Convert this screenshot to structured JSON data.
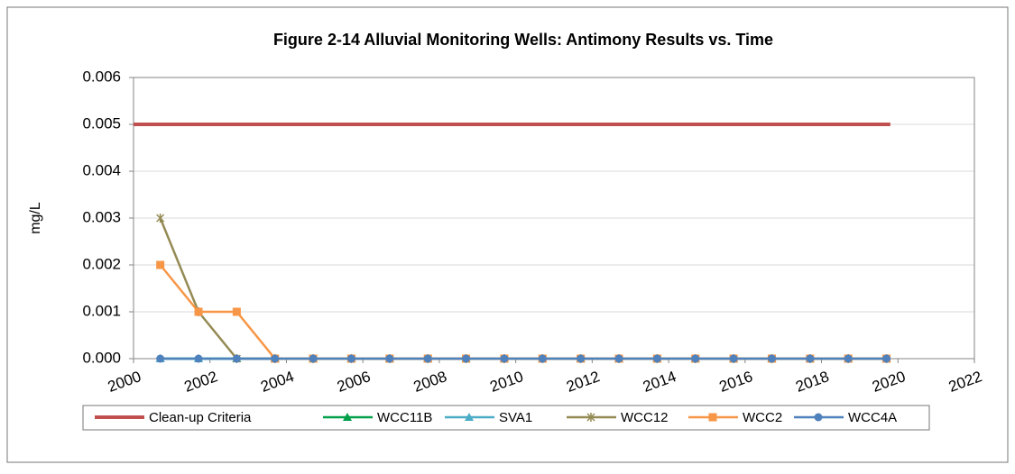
{
  "chart_data": {
    "type": "line",
    "title": "Figure 2-14 Alluvial Monitoring Wells: Antimony Results vs. Time",
    "y_label": "mg/L",
    "x": [
      2000.7,
      2001.7,
      2002.7,
      2003.7,
      2004.7,
      2005.7,
      2006.7,
      2007.7,
      2008.7,
      2009.7,
      2010.7,
      2011.7,
      2012.7,
      2013.7,
      2014.7,
      2015.7,
      2016.7,
      2017.7,
      2018.7,
      2019.7
    ],
    "xlim": [
      2000,
      2022
    ],
    "xticks": [
      2000,
      2002,
      2004,
      2006,
      2008,
      2010,
      2012,
      2014,
      2016,
      2018,
      2020,
      2022
    ],
    "ylim": [
      0,
      0.006
    ],
    "yticks": [
      {
        "value": 0,
        "label": "0.000"
      },
      {
        "value": 0.001,
        "label": "0.001"
      },
      {
        "value": 0.002,
        "label": "0.002"
      },
      {
        "value": 0.003,
        "label": "0.003"
      },
      {
        "value": 0.004,
        "label": "0.004"
      },
      {
        "value": 0.005,
        "label": "0.005"
      },
      {
        "value": 0.006,
        "label": "0.006"
      }
    ],
    "grid": true,
    "legend": "bottom",
    "series": [
      {
        "name": "Clean-up Criteria",
        "color": "#c0504d",
        "x": [
          2000,
          2019.8
        ],
        "values": [
          0.005,
          0.005
        ]
      },
      {
        "name": "WCC11B",
        "color": "#00a04a",
        "marker": "triangle",
        "values": [
          0,
          0,
          0,
          0,
          0,
          0,
          0,
          0,
          0,
          0,
          0,
          0,
          0,
          0,
          0,
          0,
          0,
          0,
          0,
          0
        ]
      },
      {
        "name": "SVA1",
        "color": "#4bacc6",
        "marker": "triangle",
        "values": [
          0,
          0,
          0,
          0,
          0,
          0,
          0,
          0,
          0,
          0,
          0,
          0,
          0,
          0,
          0,
          0,
          0,
          0,
          0,
          0
        ]
      },
      {
        "name": "WCC12",
        "color": "#948a54",
        "marker": "star",
        "values": [
          0.003,
          0.001,
          0,
          0,
          0,
          0,
          0,
          0,
          0,
          0,
          0,
          0,
          0,
          0,
          0,
          0,
          0,
          0,
          0,
          0
        ]
      },
      {
        "name": "WCC2",
        "color": "#f79646",
        "marker": "square",
        "values": [
          0.002,
          0.001,
          0.001,
          0,
          0,
          0,
          0,
          0,
          0,
          0,
          0,
          0,
          0,
          0,
          0,
          0,
          0,
          0,
          0,
          0
        ]
      },
      {
        "name": "WCC4A",
        "color": "#4f81bd",
        "marker": "circle",
        "values": [
          0,
          0,
          0,
          0,
          0,
          0,
          0,
          0,
          0,
          0,
          0,
          0,
          0,
          0,
          0,
          0,
          0,
          0,
          0,
          0
        ]
      }
    ]
  }
}
